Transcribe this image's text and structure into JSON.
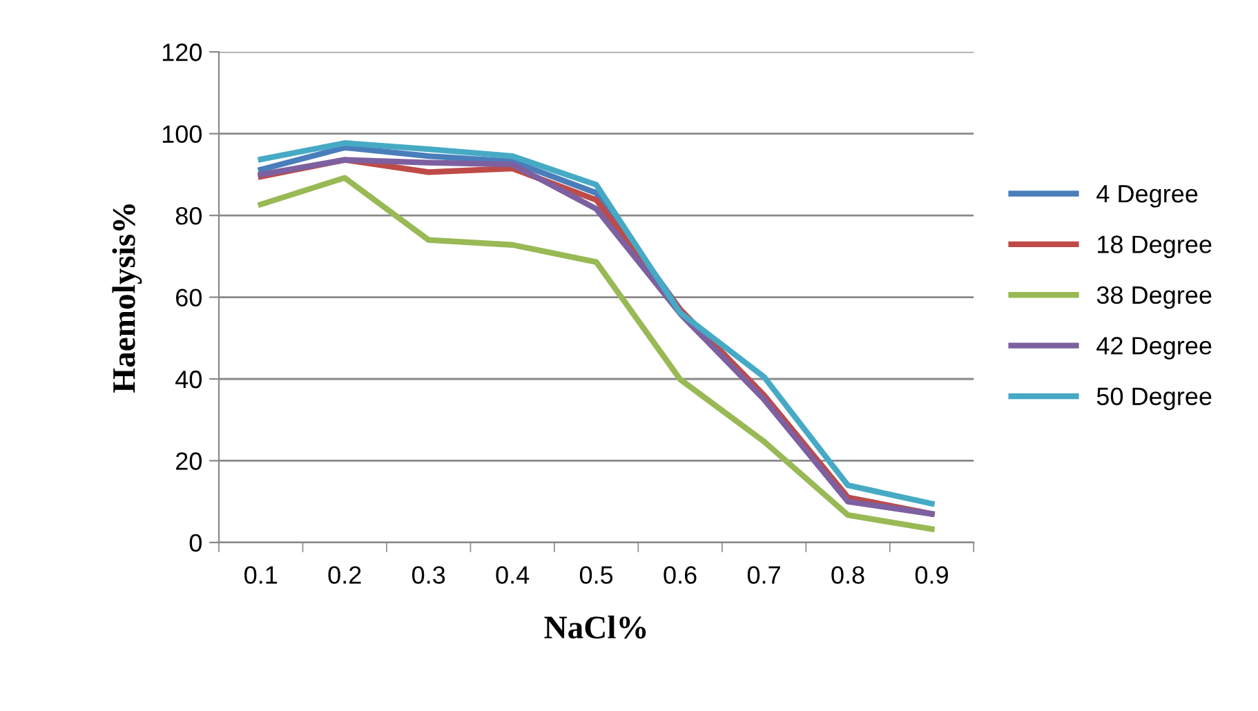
{
  "chart_data": {
    "type": "line",
    "xlabel": "NaCl%",
    "ylabel": "Haemolysis%",
    "categories": [
      "0.1",
      "0.2",
      "0.3",
      "0.4",
      "0.5",
      "0.6",
      "0.7",
      "0.8",
      "0.9"
    ],
    "series": [
      {
        "name": "4 Degree",
        "color": "#4a7ebb",
        "values": [
          91.2,
          96.6,
          94.5,
          93.2,
          85.5,
          57,
          36,
          11,
          7
        ]
      },
      {
        "name": "18 Degree",
        "color": "#be4b48",
        "values": [
          89.5,
          93.6,
          90.6,
          91.5,
          83.8,
          57,
          36,
          11,
          7
        ]
      },
      {
        "name": "38 Degree",
        "color": "#98b954",
        "values": [
          82.7,
          89.2,
          74,
          72.8,
          68.6,
          39.9,
          24.7,
          6.7,
          3.3
        ]
      },
      {
        "name": "42 Degree",
        "color": "#7d60a0",
        "values": [
          90,
          93.6,
          92.9,
          92.5,
          81.6,
          56,
          35,
          10,
          7
        ]
      },
      {
        "name": "50 Degree",
        "color": "#46aac5",
        "values": [
          93.7,
          97.7,
          96.2,
          94.5,
          87.5,
          56.2,
          40.5,
          14,
          9.5
        ]
      }
    ],
    "ylim": [
      0,
      120
    ],
    "yticks": [
      0,
      20,
      40,
      60,
      80,
      100,
      120
    ],
    "grid": "y",
    "legend": "right",
    "marker": "none",
    "line_style": "solid"
  }
}
